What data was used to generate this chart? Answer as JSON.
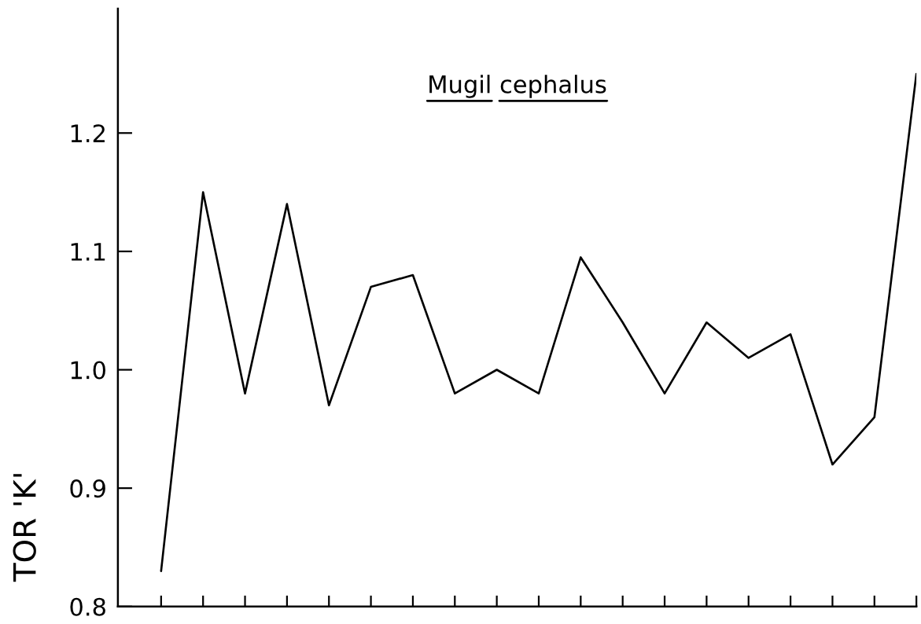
{
  "chart_data": {
    "type": "line",
    "title": "Mugil cephalus",
    "ylabel": "TOR 'K'",
    "categories": [
      null,
      null,
      null,
      null,
      null,
      null,
      null,
      null,
      null,
      null,
      null,
      null,
      null,
      null,
      null,
      null,
      null,
      null,
      null
    ],
    "series": [
      {
        "color": "#000000",
        "values": [
          0.83,
          1.15,
          0.98,
          1.14,
          0.97,
          1.07,
          1.08,
          0.98,
          1.0,
          0.98,
          1.095,
          1.04,
          0.98,
          1.04,
          1.01,
          1.03,
          0.92,
          0.96,
          1.25
        ]
      }
    ],
    "ylim": [
      0.8,
      1.305
    ],
    "yticks": [
      0.8,
      0.9,
      {
        "value": 1.0,
        "label": "1.0"
      },
      1.1,
      1.2
    ],
    "tick_labels": "y"
  }
}
